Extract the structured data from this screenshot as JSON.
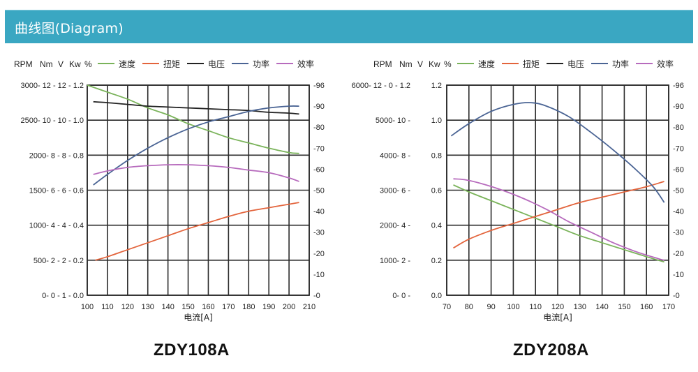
{
  "header": {
    "title": "曲线图(Diagram)"
  },
  "colors": {
    "header_bg": "#3aa7c2",
    "speed": "#7ab35a",
    "torque": "#e3643c",
    "voltage": "#222222",
    "power": "#4a6494",
    "efficiency": "#b76bbd",
    "grid": "#2b2b2b"
  },
  "chart_data": [
    {
      "type": "line",
      "model": "ZDY108A",
      "axis_units": [
        "RPM",
        "Nm",
        "V",
        "Kw",
        "%"
      ],
      "xlabel": "电流[A]",
      "xlim": [
        100,
        210
      ],
      "x_ticks": [
        "100",
        "110",
        "120",
        "130",
        "140",
        "150",
        "160",
        "170",
        "180",
        "190",
        "200",
        "210"
      ],
      "left_tick_labels": [
        "3000- 12 - 12 - 1.2",
        "2500- 10 - 10 - 1.0",
        "2000-  8 -  8 - 0.8",
        "1500-  6 -  6 - 0.6",
        "1000-  4 -  4 - 0.4",
        "500-  2 -  2 - 0.2",
        "0-  0 -  1 - 0.0"
      ],
      "right_tick_labels": [
        "-96",
        "-90",
        "-80",
        "-70",
        "-60",
        "-50",
        "-40",
        "-30",
        "-20",
        "-10",
        "-0"
      ],
      "legend": [
        "速度",
        "扭矩",
        "电压",
        "功率",
        "效率"
      ],
      "legend_placement": "top",
      "grid": true,
      "series": [
        {
          "name": "速度",
          "color": "#7ab35a",
          "x": [
            100,
            110,
            120,
            130,
            140,
            150,
            160,
            170,
            180,
            190,
            200,
            205
          ],
          "y": [
            1.2,
            1.16,
            1.12,
            1.07,
            1.03,
            0.98,
            0.94,
            0.9,
            0.87,
            0.84,
            0.815,
            0.81
          ]
        },
        {
          "name": "扭矩",
          "color": "#e3643c",
          "x": [
            104,
            110,
            120,
            130,
            140,
            150,
            160,
            170,
            180,
            190,
            200,
            205
          ],
          "y": [
            0.2,
            0.22,
            0.26,
            0.3,
            0.34,
            0.38,
            0.415,
            0.45,
            0.48,
            0.5,
            0.52,
            0.53
          ]
        },
        {
          "name": "电压",
          "color": "#222222",
          "x": [
            103,
            110,
            120,
            130,
            140,
            150,
            160,
            170,
            180,
            190,
            200,
            205
          ],
          "y": [
            1.105,
            1.1,
            1.09,
            1.08,
            1.075,
            1.07,
            1.065,
            1.06,
            1.055,
            1.045,
            1.04,
            1.035
          ]
        },
        {
          "name": "功率",
          "color": "#4a6494",
          "x": [
            103,
            110,
            120,
            130,
            140,
            150,
            160,
            170,
            180,
            190,
            200,
            205
          ],
          "y": [
            0.63,
            0.69,
            0.77,
            0.84,
            0.9,
            0.95,
            0.99,
            1.02,
            1.05,
            1.07,
            1.08,
            1.08
          ]
        },
        {
          "name": "效率",
          "color": "#b76bbd",
          "x": [
            103,
            110,
            120,
            130,
            140,
            150,
            160,
            170,
            180,
            190,
            200,
            205
          ],
          "y": [
            0.69,
            0.71,
            0.73,
            0.74,
            0.745,
            0.745,
            0.74,
            0.73,
            0.715,
            0.7,
            0.67,
            0.65
          ]
        }
      ]
    },
    {
      "type": "line",
      "model": "ZDY208A",
      "axis_units": [
        "RPM",
        "Nm",
        "V",
        "Kw",
        "%"
      ],
      "xlabel": "电流[A]",
      "xlim": [
        70,
        170
      ],
      "x_ticks": [
        "70",
        "80",
        "90",
        "100",
        "110",
        "120",
        "130",
        "140",
        "150",
        "160",
        "170"
      ],
      "left_tick_labels": [
        "6000- 12 -  0 - 1.2",
        "5000- 10 -",
        "4000-  8 -",
        "3000-  6 -",
        "2000-  4 -",
        "1000-  2 -",
        "0-  0 -"
      ],
      "inner_tick_labels": [
        "1.2",
        "1.0",
        "0.8",
        "0.6",
        "0.4",
        "0.2",
        "0.0"
      ],
      "right_tick_labels": [
        "-96",
        "-90",
        "-80",
        "-70",
        "-60",
        "-50",
        "-40",
        "-30",
        "-20",
        "-10",
        "-0"
      ],
      "legend": [
        "速度",
        "扭矩",
        "电压",
        "功率",
        "效率"
      ],
      "legend_placement": "top",
      "grid": true,
      "series": [
        {
          "name": "速度",
          "color": "#7ab35a",
          "x": [
            73,
            80,
            90,
            100,
            110,
            120,
            130,
            140,
            150,
            160,
            168
          ],
          "y": [
            0.63,
            0.59,
            0.54,
            0.49,
            0.44,
            0.39,
            0.34,
            0.3,
            0.26,
            0.22,
            0.19
          ]
        },
        {
          "name": "扭矩",
          "color": "#e3643c",
          "x": [
            73,
            80,
            90,
            100,
            110,
            120,
            130,
            140,
            150,
            160,
            168
          ],
          "y": [
            0.27,
            0.32,
            0.37,
            0.41,
            0.45,
            0.49,
            0.53,
            0.56,
            0.59,
            0.62,
            0.65
          ]
        },
        {
          "name": "功率",
          "color": "#4a6494",
          "x": [
            72,
            80,
            90,
            100,
            108,
            115,
            125,
            135,
            145,
            155,
            163,
            168
          ],
          "y": [
            0.91,
            0.98,
            1.05,
            1.09,
            1.1,
            1.08,
            1.02,
            0.93,
            0.83,
            0.72,
            0.62,
            0.53
          ]
        },
        {
          "name": "效率",
          "color": "#b76bbd",
          "x": [
            73,
            78,
            85,
            95,
            105,
            115,
            125,
            135,
            145,
            155,
            165,
            168
          ],
          "y": [
            0.665,
            0.66,
            0.64,
            0.6,
            0.55,
            0.49,
            0.42,
            0.36,
            0.3,
            0.25,
            0.21,
            0.2
          ]
        }
      ]
    }
  ],
  "models": {
    "left": "ZDY108A",
    "right": "ZDY208A"
  }
}
